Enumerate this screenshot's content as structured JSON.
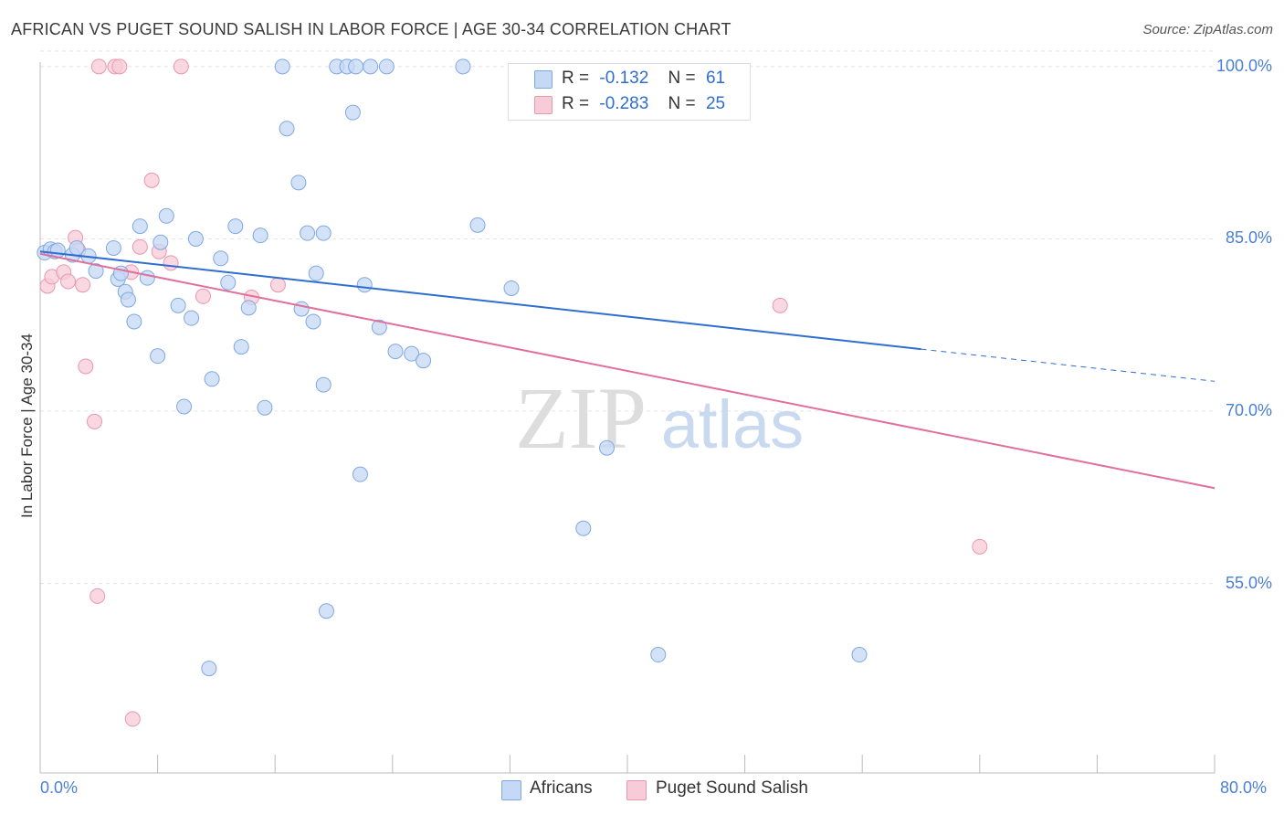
{
  "title": "AFRICAN VS PUGET SOUND SALISH IN LABOR FORCE | AGE 30-34 CORRELATION CHART",
  "source": "Source: ZipAtlas.com",
  "watermark": {
    "zip": "ZIP",
    "atlas": "atlas"
  },
  "colors": {
    "africans_fill": "#c5d8f5",
    "africans_stroke": "#7fa8e2",
    "africans_line": "#2f6ed0",
    "salish_fill": "#f8cbd8",
    "salish_stroke": "#e996b0",
    "salish_line": "#e0709a",
    "tick_text": "#4a7fd4",
    "grid": "#e4e4e4"
  },
  "legend": {
    "africans": {
      "r_label": "R =",
      "r_value": "-0.132",
      "n_label": "N =",
      "n_value": "61"
    },
    "salish": {
      "r_label": "R =",
      "r_value": "-0.283",
      "n_label": "N =",
      "n_value": "25"
    }
  },
  "chart_data": {
    "type": "scatter",
    "title": "AFRICAN VS PUGET SOUND SALISH IN LABOR FORCE | AGE 30-34 CORRELATION CHART",
    "xlabel": "",
    "ylabel": "In Labor Force | Age 30-34",
    "xlim": [
      0,
      80
    ],
    "ylim": [
      38.5,
      101.5
    ],
    "x_tick_labels": [
      "0.0%",
      "80.0%"
    ],
    "y_ticks": [
      100,
      85,
      70,
      55
    ],
    "y_tick_labels": [
      "100.0%",
      "85.0%",
      "70.0%",
      "55.0%"
    ],
    "legend_position": "bottom",
    "series": [
      {
        "name": "Africans",
        "r": -0.132,
        "n": 61,
        "trend": {
          "x0": 0,
          "y0": 83.9,
          "x1": 60,
          "y1": 75.4,
          "dash_to_x": 80,
          "dash_to_y": 72.6
        },
        "points": [
          [
            0.3,
            83.8
          ],
          [
            0.7,
            84.1
          ],
          [
            1.0,
            83.9
          ],
          [
            1.2,
            84.0
          ],
          [
            2.2,
            83.6
          ],
          [
            2.5,
            84.2
          ],
          [
            3.3,
            83.5
          ],
          [
            3.8,
            82.2
          ],
          [
            5.0,
            84.2
          ],
          [
            5.3,
            81.5
          ],
          [
            5.5,
            82.0
          ],
          [
            5.8,
            80.4
          ],
          [
            6.0,
            79.7
          ],
          [
            6.4,
            77.8
          ],
          [
            6.8,
            86.1
          ],
          [
            7.3,
            81.6
          ],
          [
            8.0,
            74.8
          ],
          [
            8.2,
            84.7
          ],
          [
            8.6,
            87.0
          ],
          [
            9.4,
            79.2
          ],
          [
            9.8,
            70.4
          ],
          [
            10.3,
            78.1
          ],
          [
            10.6,
            85.0
          ],
          [
            11.5,
            47.6
          ],
          [
            11.7,
            72.8
          ],
          [
            12.3,
            83.3
          ],
          [
            12.8,
            81.2
          ],
          [
            13.3,
            86.1
          ],
          [
            13.7,
            75.6
          ],
          [
            14.2,
            79.0
          ],
          [
            15.0,
            85.3
          ],
          [
            15.3,
            70.3
          ],
          [
            16.5,
            100.0
          ],
          [
            16.8,
            94.6
          ],
          [
            17.6,
            89.9
          ],
          [
            17.8,
            78.9
          ],
          [
            18.2,
            85.5
          ],
          [
            18.6,
            77.8
          ],
          [
            18.8,
            82.0
          ],
          [
            19.3,
            72.3
          ],
          [
            19.3,
            85.5
          ],
          [
            19.5,
            52.6
          ],
          [
            20.2,
            100.0
          ],
          [
            20.9,
            100.0
          ],
          [
            21.3,
            96.0
          ],
          [
            21.5,
            100.0
          ],
          [
            21.8,
            64.5
          ],
          [
            22.1,
            81.0
          ],
          [
            22.5,
            100.0
          ],
          [
            23.1,
            77.3
          ],
          [
            23.6,
            100.0
          ],
          [
            24.2,
            75.2
          ],
          [
            25.3,
            75.0
          ],
          [
            26.1,
            74.4
          ],
          [
            28.8,
            100.0
          ],
          [
            29.8,
            86.2
          ],
          [
            32.1,
            80.7
          ],
          [
            37.0,
            59.8
          ],
          [
            38.6,
            66.8
          ],
          [
            42.1,
            48.8
          ],
          [
            55.8,
            48.8
          ]
        ]
      },
      {
        "name": "Puget Sound Salish",
        "r": -0.283,
        "n": 25,
        "trend": {
          "x0": 0,
          "y0": 83.7,
          "x1": 80,
          "y1": 63.3
        },
        "points": [
          [
            0.5,
            80.9
          ],
          [
            0.8,
            81.7
          ],
          [
            1.6,
            82.1
          ],
          [
            1.9,
            81.3
          ],
          [
            2.4,
            85.1
          ],
          [
            2.6,
            84.0
          ],
          [
            2.9,
            81.0
          ],
          [
            3.1,
            73.9
          ],
          [
            3.7,
            69.1
          ],
          [
            3.9,
            53.9
          ],
          [
            4.0,
            100.0
          ],
          [
            5.1,
            100.0
          ],
          [
            5.4,
            100.0
          ],
          [
            6.2,
            82.1
          ],
          [
            6.3,
            43.2
          ],
          [
            6.8,
            84.3
          ],
          [
            7.6,
            90.1
          ],
          [
            8.1,
            83.9
          ],
          [
            8.9,
            82.9
          ],
          [
            9.6,
            100.0
          ],
          [
            11.1,
            80.0
          ],
          [
            14.4,
            79.9
          ],
          [
            16.2,
            81.0
          ],
          [
            50.4,
            79.2
          ],
          [
            64.0,
            58.2
          ]
        ]
      }
    ]
  },
  "bottom_legend": {
    "africans": "Africans",
    "salish": "Puget Sound Salish"
  }
}
